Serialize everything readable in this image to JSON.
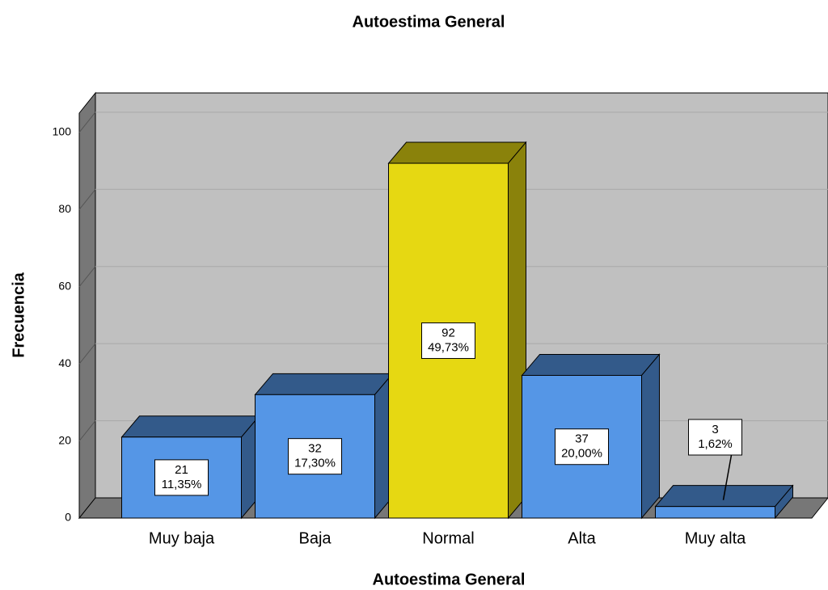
{
  "chart_data": {
    "type": "bar3d",
    "title": "Autoestima General",
    "x_label": "Autoestima General",
    "y_label": "Frecuencia",
    "categories": [
      "Muy baja",
      "Baja",
      "Normal",
      "Alta",
      "Muy alta"
    ],
    "values": [
      21,
      32,
      92,
      37,
      3
    ],
    "percent_labels": [
      "11,35%",
      "17,30%",
      "49,73%",
      "20,00%",
      "1,62%"
    ],
    "colors": [
      "#5596e6",
      "#5596e6",
      "#e6d812",
      "#5596e6",
      "#5596e6"
    ],
    "ylim": [
      0,
      105
    ],
    "yticks": [
      0,
      20,
      40,
      60,
      80,
      100
    ],
    "grid": true
  }
}
